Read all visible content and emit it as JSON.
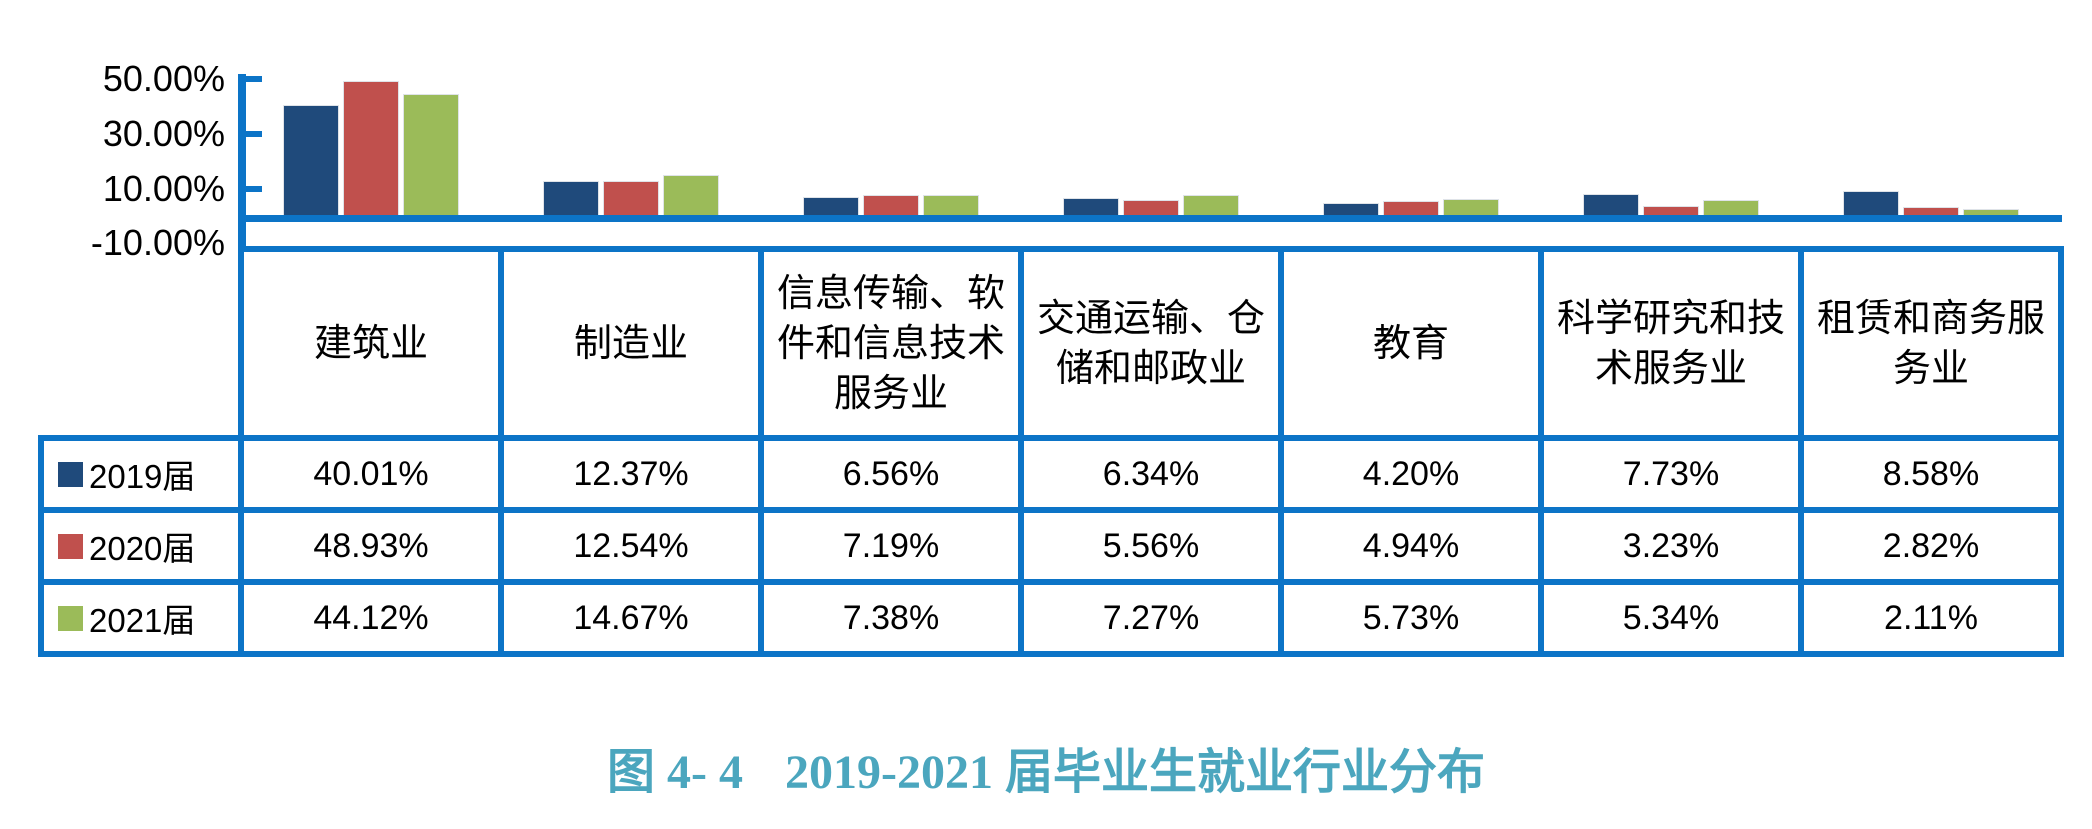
{
  "chart_data": {
    "type": "bar",
    "title": "",
    "categories": [
      "建筑业",
      "制造业",
      "信息传输、软件和信息技术服务业",
      "交通运输、仓储和邮政业",
      "教育",
      "科学研究和技术服务业",
      "租赁和商务服务业"
    ],
    "series": [
      {
        "name": "2019届",
        "color": "#1F4A7B",
        "values": [
          40.01,
          12.37,
          6.56,
          6.34,
          4.2,
          7.73,
          8.58
        ]
      },
      {
        "name": "2020届",
        "color": "#C0504D",
        "values": [
          48.93,
          12.54,
          7.19,
          5.56,
          4.94,
          3.23,
          2.82
        ]
      },
      {
        "name": "2021届",
        "color": "#9BBB59",
        "values": [
          44.12,
          14.67,
          7.38,
          7.27,
          5.73,
          5.34,
          2.11
        ]
      }
    ],
    "y_tick_labels": [
      "50.00%",
      "30.00%",
      "10.00%",
      "-10.00%"
    ],
    "y_tick_values": [
      50,
      30,
      10,
      -10
    ],
    "ylim": [
      -10,
      50
    ],
    "grid": false,
    "legend_position": "table-left-column"
  },
  "table": {
    "columns": [
      "建筑业",
      "制造业",
      "信息传输、软件和信息技术服务业",
      "交通运输、仓储和邮政业",
      "教育",
      "科学研究和技术服务业",
      "租赁和商务服务业"
    ],
    "rows": [
      {
        "label": "2019届",
        "cells": [
          "40.01%",
          "12.37%",
          "6.56%",
          "6.34%",
          "4.20%",
          "7.73%",
          "8.58%"
        ]
      },
      {
        "label": "2020届",
        "cells": [
          "48.93%",
          "12.54%",
          "7.19%",
          "5.56%",
          "4.94%",
          "3.23%",
          "2.82%"
        ]
      },
      {
        "label": "2021届",
        "cells": [
          "44.12%",
          "14.67%",
          "7.38%",
          "7.27%",
          "5.73%",
          "5.34%",
          "2.11%"
        ]
      }
    ]
  },
  "caption": {
    "figure_label": "图 4- 4",
    "title": "2019-2021 届毕业生就业行业分布"
  },
  "colors": {
    "table_border": "#0C74C7",
    "axis": "#0C74C7",
    "caption": "#4BA6BE",
    "series_2019": "#1F4A7B",
    "series_2020": "#C0504D",
    "series_2021": "#9BBB59"
  }
}
